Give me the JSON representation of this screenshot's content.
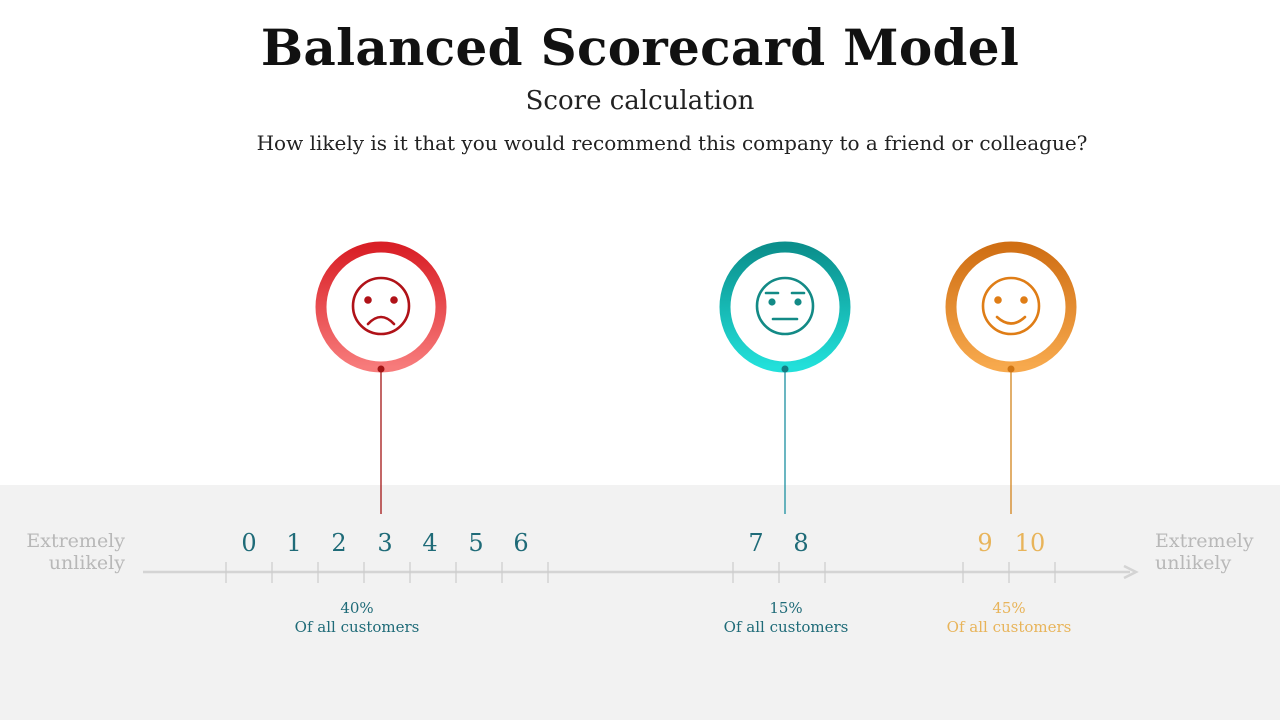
{
  "title": "Balanced Scorecard Model",
  "subtitle": "Score calculation",
  "question": "How likely is it that you would recommend this company to a friend or colleague?",
  "scale": {
    "left_label": "Extremely unlikely",
    "right_label": "Extremely unlikely",
    "scores": [
      "0",
      "1",
      "2",
      "3",
      "4",
      "5",
      "6",
      "7",
      "8",
      "9",
      "10"
    ]
  },
  "groups": [
    {
      "face": "sad-face-icon",
      "color": "#e0262e",
      "score_color": "#1f6b78",
      "percent": "40%",
      "caption": "Of all customers"
    },
    {
      "face": "neutral-face-icon",
      "color": "#0f9c99",
      "score_color": "#1f6b78",
      "percent": "15%",
      "caption": "Of all customers"
    },
    {
      "face": "happy-face-icon",
      "color": "#e5892a",
      "score_color": "#e8b45a",
      "percent": "45%",
      "caption": "Of all customers"
    }
  ],
  "colors": {
    "band": "#f2f2f2",
    "axis": "#d4d4d4",
    "end_label": "#b8b8b8"
  }
}
